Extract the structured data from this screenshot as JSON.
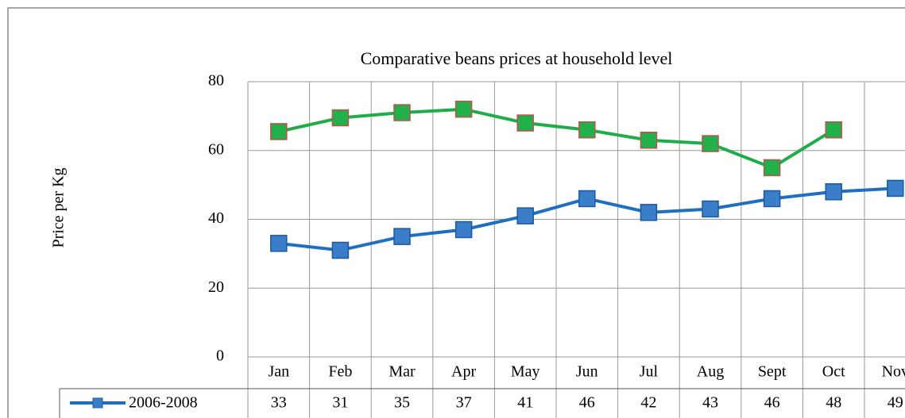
{
  "chart_data": {
    "type": "line",
    "title": "Comparative beans prices  at household level",
    "y_label": "Price per Kg",
    "categories": [
      "Jan",
      "Feb",
      "Mar",
      "Apr",
      "May",
      "Jun",
      "Jul",
      "Aug",
      "Sept",
      "Oct",
      "Nov"
    ],
    "series": [
      {
        "name": "2006-2008",
        "color": "#1f6fc0",
        "marker_color": "#3a7dc9",
        "values": [
          33,
          31,
          35,
          37,
          41,
          46,
          42,
          43,
          46,
          48,
          49
        ]
      },
      {
        "color": "#1fad4a",
        "marker_color": "#22b04a",
        "values": [
          65.5,
          69.5,
          71,
          72,
          68,
          66,
          63,
          62,
          55,
          66,
          null
        ]
      }
    ],
    "ylim": [
      0,
      80
    ],
    "yticks": [
      0,
      20,
      40,
      60,
      80
    ],
    "grid": true,
    "data_table": true
  }
}
